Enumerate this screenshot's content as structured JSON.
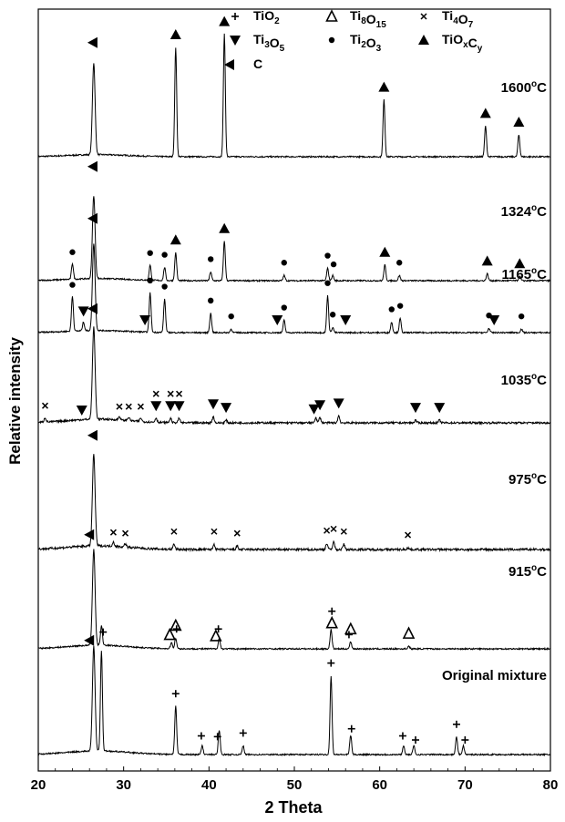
{
  "chart_data": {
    "type": "line",
    "xlabel": "2 Theta",
    "ylabel": "Relative intensity",
    "xlim": [
      20,
      80
    ],
    "x_ticks": [
      "20",
      "30",
      "40",
      "50",
      "60",
      "70",
      "80"
    ],
    "legend": {
      "placement": "top-right",
      "entries": [
        {
          "marker": "plus",
          "label": "TiO",
          "sub": "2"
        },
        {
          "marker": "delta",
          "label": "Ti",
          "sub": "8",
          "label2": "O",
          "sub2": "15"
        },
        {
          "marker": "cross",
          "label": "Ti",
          "sub": "4",
          "label2": "O",
          "sub2": "7"
        },
        {
          "marker": "tri-down",
          "label": "Ti",
          "sub": "3",
          "label2": "O",
          "sub2": "5"
        },
        {
          "marker": "dot",
          "label": "Ti",
          "sub": "2",
          "label2": "O",
          "sub2": "3"
        },
        {
          "marker": "tri-up",
          "label": "TiO",
          "sub": "x",
          "label2": "C",
          "sub2": "y"
        },
        {
          "marker": "tri-left",
          "label": "C",
          "sub": ""
        }
      ]
    },
    "series": [
      {
        "name": "1600°C",
        "peaks": [
          {
            "x": 26.5,
            "h": 105,
            "phase": "C"
          },
          {
            "x": 36.1,
            "h": 125,
            "phase": "TiOxCy"
          },
          {
            "x": 41.8,
            "h": 140,
            "phase": "TiOxCy"
          },
          {
            "x": 60.5,
            "h": 65,
            "phase": "TiOxCy"
          },
          {
            "x": 72.4,
            "h": 35,
            "phase": "TiOxCy"
          },
          {
            "x": 76.3,
            "h": 25,
            "phase": "TiOxCy"
          }
        ]
      },
      {
        "name": "1324°C",
        "peaks": [
          {
            "x": 26.5,
            "h": 95,
            "phase": "C"
          },
          {
            "x": 24.0,
            "h": 18,
            "phase": "Ti2O3"
          },
          {
            "x": 33.1,
            "h": 17,
            "phase": "Ti2O3"
          },
          {
            "x": 34.8,
            "h": 15,
            "phase": "Ti2O3"
          },
          {
            "x": 36.1,
            "h": 32,
            "phase": "TiOxCy"
          },
          {
            "x": 40.2,
            "h": 10,
            "phase": "Ti2O3"
          },
          {
            "x": 41.8,
            "h": 45,
            "phase": "TiOxCy"
          },
          {
            "x": 48.8,
            "h": 6,
            "phase": "Ti2O3"
          },
          {
            "x": 53.9,
            "h": 14,
            "phase": "Ti2O3"
          },
          {
            "x": 54.5,
            "h": 6,
            "phase": "Ti2O3"
          },
          {
            "x": 60.6,
            "h": 18,
            "phase": "TiOxCy"
          },
          {
            "x": 62.3,
            "h": 6,
            "phase": "Ti2O3"
          },
          {
            "x": 72.6,
            "h": 8,
            "phase": "TiOxCy"
          },
          {
            "x": 76.4,
            "h": 5,
            "phase": "TiOxCy"
          }
        ]
      },
      {
        "name": "1165°C",
        "peaks": [
          {
            "x": 26.5,
            "h": 100,
            "phase": "C"
          },
          {
            "x": 24.0,
            "h": 40,
            "phase": "Ti2O3"
          },
          {
            "x": 25.3,
            "h": 10,
            "phase": "Ti3O5"
          },
          {
            "x": 33.1,
            "h": 45,
            "phase": "Ti2O3"
          },
          {
            "x": 34.8,
            "h": 38,
            "phase": "Ti2O3"
          },
          {
            "x": 40.2,
            "h": 22,
            "phase": "Ti2O3"
          },
          {
            "x": 42.6,
            "h": 4,
            "phase": "Ti2O3"
          },
          {
            "x": 48.8,
            "h": 14,
            "phase": "Ti2O3"
          },
          {
            "x": 53.9,
            "h": 42,
            "phase": "Ti2O3"
          },
          {
            "x": 54.5,
            "h": 6,
            "phase": "Ti2O3"
          },
          {
            "x": 61.4,
            "h": 12,
            "phase": "Ti2O3"
          },
          {
            "x": 62.4,
            "h": 16,
            "phase": "Ti2O3"
          },
          {
            "x": 72.8,
            "h": 5,
            "phase": "Ti2O3"
          },
          {
            "x": 76.6,
            "h": 4,
            "phase": "Ti2O3"
          }
        ]
      },
      {
        "name": "1035°C",
        "peaks": [
          {
            "x": 26.5,
            "h": 105,
            "phase": "C"
          },
          {
            "x": 20.8,
            "h": 5,
            "phase": "Ti4O7"
          },
          {
            "x": 29.5,
            "h": 4,
            "phase": "Ti4O7"
          },
          {
            "x": 30.6,
            "h": 4,
            "phase": "Ti4O7"
          },
          {
            "x": 32.0,
            "h": 4,
            "phase": "Ti4O7"
          },
          {
            "x": 33.8,
            "h": 5,
            "phase": "Ti4O7"
          },
          {
            "x": 35.5,
            "h": 5,
            "phase": "Ti4O7"
          },
          {
            "x": 36.5,
            "h": 5,
            "phase": "Ti4O7"
          },
          {
            "x": 40.5,
            "h": 7,
            "phase": "Ti3O5"
          },
          {
            "x": 42.0,
            "h": 3,
            "phase": "Ti3O5"
          },
          {
            "x": 52.5,
            "h": 6,
            "phase": "Ti3O5"
          },
          {
            "x": 53.0,
            "h": 6,
            "phase": "Ti3O5"
          },
          {
            "x": 55.2,
            "h": 8,
            "phase": "Ti3O5"
          },
          {
            "x": 64.2,
            "h": 3,
            "phase": "Ti3O5"
          },
          {
            "x": 67.0,
            "h": 3,
            "phase": "Ti3O5"
          }
        ]
      },
      {
        "name": "975°C",
        "peaks": [
          {
            "x": 26.5,
            "h": 105,
            "phase": "C"
          },
          {
            "x": 28.8,
            "h": 5,
            "phase": "Ti4O7"
          },
          {
            "x": 30.2,
            "h": 4,
            "phase": "Ti4O7"
          },
          {
            "x": 35.9,
            "h": 6,
            "phase": "Ti4O7"
          },
          {
            "x": 40.6,
            "h": 6,
            "phase": "Ti4O7"
          },
          {
            "x": 43.3,
            "h": 4,
            "phase": "Ti4O7"
          },
          {
            "x": 53.8,
            "h": 7,
            "phase": "Ti4O7"
          },
          {
            "x": 54.6,
            "h": 9,
            "phase": "Ti4O7"
          },
          {
            "x": 55.8,
            "h": 6,
            "phase": "Ti4O7"
          },
          {
            "x": 63.3,
            "h": 2,
            "phase": "Ti4O7"
          }
        ]
      },
      {
        "name": "915°C",
        "peaks": [
          {
            "x": 26.5,
            "h": 110,
            "phase": "C"
          },
          {
            "x": 27.4,
            "h": 22,
            "phase": "TiO2"
          },
          {
            "x": 35.6,
            "h": 7,
            "phase": "Ti8O15"
          },
          {
            "x": 36.1,
            "h": 12,
            "phase": "TiO2"
          },
          {
            "x": 41.2,
            "h": 12,
            "phase": "TiO2"
          },
          {
            "x": 54.3,
            "h": 22,
            "phase": "TiO2"
          },
          {
            "x": 56.6,
            "h": 8,
            "phase": "TiO2"
          },
          {
            "x": 63.4,
            "h": 3,
            "phase": "Ti8O15"
          }
        ]
      },
      {
        "name": "Original mixture",
        "peaks": [
          {
            "x": 26.5,
            "h": 120,
            "phase": "C"
          },
          {
            "x": 27.4,
            "h": 115,
            "phase": "TiO2"
          },
          {
            "x": 36.1,
            "h": 55,
            "phase": "TiO2"
          },
          {
            "x": 39.2,
            "h": 10,
            "phase": "TiO2"
          },
          {
            "x": 41.2,
            "h": 28,
            "phase": "TiO2"
          },
          {
            "x": 44.0,
            "h": 10,
            "phase": "TiO2"
          },
          {
            "x": 54.3,
            "h": 90,
            "phase": "TiO2"
          },
          {
            "x": 56.6,
            "h": 22,
            "phase": "TiO2"
          },
          {
            "x": 62.8,
            "h": 10,
            "phase": "TiO2"
          },
          {
            "x": 64.0,
            "h": 10,
            "phase": "TiO2"
          },
          {
            "x": 69.0,
            "h": 20,
            "phase": "TiO2"
          },
          {
            "x": 69.8,
            "h": 10,
            "phase": "TiO2"
          }
        ]
      }
    ],
    "annotations": {
      "1600°C": [
        {
          "x": 26.4,
          "m": "tri-left"
        },
        {
          "x": 36.1,
          "m": "tri-up"
        },
        {
          "x": 41.8,
          "m": "tri-up"
        },
        {
          "x": 60.5,
          "m": "tri-up"
        },
        {
          "x": 72.4,
          "m": "tri-up"
        },
        {
          "x": 76.3,
          "m": "tri-up"
        }
      ],
      "1324°C": [
        {
          "x": 26.4,
          "m": "tri-left"
        },
        {
          "x": 24.0,
          "m": "dot"
        },
        {
          "x": 33.1,
          "m": "dot"
        },
        {
          "x": 34.8,
          "m": "dot"
        },
        {
          "x": 36.1,
          "m": "tri-up"
        },
        {
          "x": 40.2,
          "m": "dot"
        },
        {
          "x": 41.8,
          "m": "tri-up"
        },
        {
          "x": 48.8,
          "m": "dot"
        },
        {
          "x": 53.9,
          "m": "dot"
        },
        {
          "x": 54.6,
          "m": "dot"
        },
        {
          "x": 60.6,
          "m": "tri-up"
        },
        {
          "x": 62.3,
          "m": "dot"
        },
        {
          "x": 72.6,
          "m": "tri-up"
        },
        {
          "x": 76.4,
          "m": "tri-up"
        }
      ],
      "1165°C": [
        {
          "x": 26.4,
          "m": "tri-left"
        },
        {
          "x": 24.0,
          "m": "dot"
        },
        {
          "x": 25.3,
          "m": "tri-down"
        },
        {
          "x": 32.5,
          "m": "tri-down"
        },
        {
          "x": 33.1,
          "m": "dot"
        },
        {
          "x": 34.8,
          "m": "dot"
        },
        {
          "x": 40.2,
          "m": "dot"
        },
        {
          "x": 42.6,
          "m": "dot"
        },
        {
          "x": 48.0,
          "m": "tri-down"
        },
        {
          "x": 48.8,
          "m": "dot"
        },
        {
          "x": 53.9,
          "m": "dot"
        },
        {
          "x": 54.5,
          "m": "dot"
        },
        {
          "x": 56.0,
          "m": "tri-down"
        },
        {
          "x": 61.4,
          "m": "dot"
        },
        {
          "x": 62.4,
          "m": "dot"
        },
        {
          "x": 72.8,
          "m": "dot"
        },
        {
          "x": 73.4,
          "m": "tri-down"
        },
        {
          "x": 76.6,
          "m": "dot"
        }
      ],
      "1035°C": [
        {
          "x": 26.4,
          "m": "tri-left"
        },
        {
          "x": 20.8,
          "m": "cross"
        },
        {
          "x": 25.1,
          "m": "tri-down"
        },
        {
          "x": 29.5,
          "m": "cross"
        },
        {
          "x": 30.6,
          "m": "cross"
        },
        {
          "x": 32.0,
          "m": "cross"
        },
        {
          "x": 33.8,
          "m": "tri-down"
        },
        {
          "x": 33.8,
          "m": "cross"
        },
        {
          "x": 35.5,
          "m": "tri-down"
        },
        {
          "x": 35.5,
          "m": "cross"
        },
        {
          "x": 36.5,
          "m": "tri-down"
        },
        {
          "x": 36.5,
          "m": "cross"
        },
        {
          "x": 40.5,
          "m": "tri-down"
        },
        {
          "x": 42.0,
          "m": "tri-down"
        },
        {
          "x": 52.3,
          "m": "tri-down"
        },
        {
          "x": 53.0,
          "m": "tri-down"
        },
        {
          "x": 55.2,
          "m": "tri-down"
        },
        {
          "x": 64.2,
          "m": "tri-down"
        },
        {
          "x": 67.0,
          "m": "tri-down"
        }
      ],
      "975°C": [
        {
          "x": 26.4,
          "m": "tri-left"
        },
        {
          "x": 28.8,
          "m": "cross"
        },
        {
          "x": 30.2,
          "m": "cross"
        },
        {
          "x": 35.9,
          "m": "cross"
        },
        {
          "x": 40.6,
          "m": "cross"
        },
        {
          "x": 43.3,
          "m": "cross"
        },
        {
          "x": 53.8,
          "m": "cross"
        },
        {
          "x": 54.6,
          "m": "cross"
        },
        {
          "x": 55.8,
          "m": "cross"
        },
        {
          "x": 63.3,
          "m": "cross"
        }
      ],
      "915°C": [
        {
          "x": 26.0,
          "m": "tri-left"
        },
        {
          "x": 27.6,
          "m": "plus"
        },
        {
          "x": 35.4,
          "m": "delta"
        },
        {
          "x": 36.1,
          "m": "delta"
        },
        {
          "x": 36.2,
          "m": "plus"
        },
        {
          "x": 40.8,
          "m": "delta"
        },
        {
          "x": 41.1,
          "m": "plus"
        },
        {
          "x": 54.4,
          "m": "delta"
        },
        {
          "x": 54.4,
          "m": "plus"
        },
        {
          "x": 56.6,
          "m": "delta"
        },
        {
          "x": 56.4,
          "m": "plus"
        },
        {
          "x": 63.4,
          "m": "delta"
        }
      ],
      "Original mixture": [
        {
          "x": 26.0,
          "m": "tri-left"
        },
        {
          "x": 36.1,
          "m": "plus"
        },
        {
          "x": 39.1,
          "m": "plus"
        },
        {
          "x": 41.0,
          "m": "plus"
        },
        {
          "x": 44.0,
          "m": "plus"
        },
        {
          "x": 54.3,
          "m": "plus"
        },
        {
          "x": 56.7,
          "m": "plus"
        },
        {
          "x": 62.7,
          "m": "plus"
        },
        {
          "x": 64.2,
          "m": "plus"
        },
        {
          "x": 69.0,
          "m": "plus"
        },
        {
          "x": 70.0,
          "m": "plus"
        }
      ]
    }
  }
}
